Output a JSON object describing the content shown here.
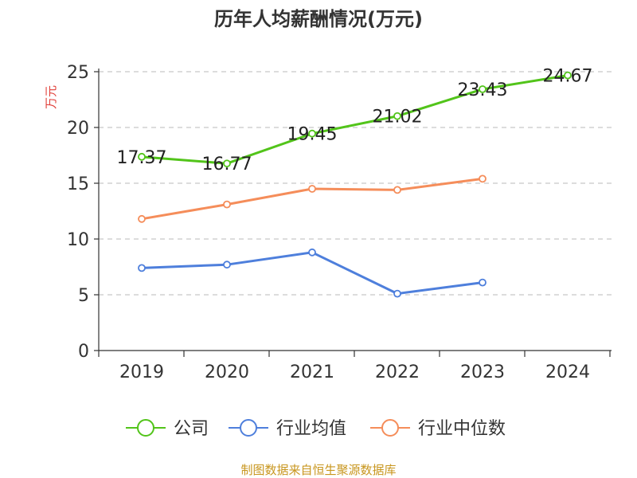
{
  "chart_data": {
    "type": "line",
    "title": "历年人均薪酬情况(万元)",
    "ylabel": "万元",
    "xlabel": "",
    "ylim": [
      0,
      25
    ],
    "yticks": [
      "0",
      "5",
      "10",
      "15",
      "20",
      "25"
    ],
    "categories": [
      "2019",
      "2020",
      "2021",
      "2022",
      "2023",
      "2024"
    ],
    "grid": true,
    "legend_position": "bottom",
    "series": [
      {
        "name": "公司",
        "color": "#52c41a",
        "values": [
          17.37,
          16.77,
          19.45,
          21.02,
          23.43,
          24.67
        ],
        "labels": [
          "17.37",
          "16.77",
          "19.45",
          "21.02",
          "23.43",
          "24.67"
        ]
      },
      {
        "name": "行业均值",
        "color": "#4e7fdc",
        "values": [
          7.4,
          7.7,
          8.8,
          5.1,
          6.1,
          null
        ]
      },
      {
        "name": "行业中位数",
        "color": "#f58d5a",
        "values": [
          11.8,
          13.1,
          14.5,
          14.4,
          15.4,
          null
        ]
      }
    ],
    "source": "制图数据来自恒生聚源数据库"
  }
}
